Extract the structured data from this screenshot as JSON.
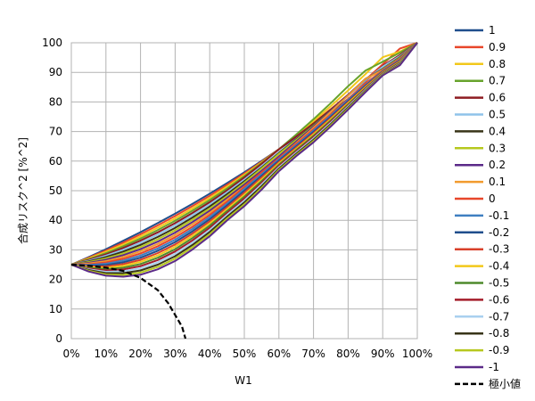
{
  "chart_data": {
    "type": "line",
    "title": "",
    "xlabel": "W1",
    "ylabel": "合成リスク^2 [%^2]",
    "xlim": [
      0,
      100
    ],
    "ylim": [
      0,
      100
    ],
    "x_ticks": [
      "0%",
      "10%",
      "20%",
      "30%",
      "40%",
      "50%",
      "60%",
      "70%",
      "80%",
      "90%",
      "100%"
    ],
    "y_ticks": [
      "0",
      "10",
      "20",
      "30",
      "40",
      "50",
      "60",
      "70",
      "80",
      "90",
      "100"
    ],
    "grid": true,
    "legend_position": "right",
    "x": [
      0,
      5,
      10,
      15,
      20,
      25,
      30,
      35,
      40,
      45,
      50,
      55,
      60,
      65,
      70,
      75,
      80,
      85,
      90,
      95,
      100
    ],
    "series": [
      {
        "name": "1",
        "color": "#1f4e8c",
        "values": [
          25,
          27.56,
          30.25,
          33.06,
          36,
          39.06,
          42.25,
          45.56,
          49,
          52.56,
          56.25,
          60.06,
          64,
          68.06,
          72.25,
          76.56,
          81,
          85.56,
          90.25,
          95.06,
          100
        ]
      },
      {
        "name": "0.9",
        "color": "#e8462a",
        "values": [
          25,
          27.31,
          29.8,
          32.45,
          35.28,
          38.28,
          41.44,
          44.78,
          48.28,
          51.96,
          55.8,
          59.81,
          64,
          68.36,
          72.88,
          77.58,
          82.44,
          87.48,
          92.68,
          98.06,
          100
        ]
      },
      {
        "name": "0.8",
        "color": "#f2c81a",
        "values": [
          25,
          27.07,
          29.35,
          31.85,
          34.56,
          37.5,
          40.64,
          44.01,
          47.56,
          51.35,
          55.35,
          59.56,
          64,
          68.66,
          73.52,
          78.59,
          83.88,
          89.39,
          95.12,
          97.06,
          100
        ]
      },
      {
        "name": "0.7",
        "color": "#67a32c",
        "values": [
          25,
          26.83,
          28.9,
          31.24,
          33.84,
          36.72,
          39.84,
          43.25,
          46.84,
          50.72,
          54.9,
          59.31,
          64,
          68.97,
          74.16,
          79.6,
          85.32,
          90.56,
          93.6,
          96.7,
          100
        ]
      },
      {
        "name": "0.6",
        "color": "#8e1c22",
        "values": [
          25,
          26.59,
          28.45,
          30.63,
          33.12,
          35.94,
          39.04,
          42.48,
          46.12,
          50.09,
          54.45,
          59.06,
          64,
          68.28,
          72.72,
          77.34,
          82.12,
          87.06,
          92.16,
          95.91,
          100
        ]
      },
      {
        "name": "0.5",
        "color": "#8fc3ea",
        "values": [
          25,
          26.34,
          28,
          30.03,
          32.4,
          35.16,
          38.25,
          41.71,
          45.4,
          49.46,
          53.75,
          58.31,
          63,
          67.5,
          72.2,
          77.06,
          82.1,
          87.3,
          91.9,
          95.5,
          100
        ]
      },
      {
        "name": "0.4",
        "color": "#383418",
        "values": [
          25,
          26.1,
          27.55,
          29.42,
          31.68,
          34.38,
          37.44,
          40.94,
          44.68,
          48.83,
          53.2,
          57.84,
          62.72,
          67.37,
          72.2,
          77.2,
          82.36,
          87.69,
          91.2,
          95.2,
          100
        ]
      },
      {
        "name": "0.3",
        "color": "#b6c81e",
        "values": [
          25,
          25.86,
          27.1,
          28.81,
          30.96,
          33.59,
          36.64,
          40.17,
          43.96,
          48.2,
          52.7,
          57.54,
          62.44,
          67.1,
          71.96,
          77.02,
          82.28,
          87.74,
          91.04,
          95.0,
          100
        ]
      },
      {
        "name": "0.2",
        "color": "#5b2a88",
        "values": [
          25,
          25.61,
          26.65,
          28.21,
          30.24,
          32.81,
          35.84,
          39.4,
          43.24,
          47.56,
          52.05,
          56.75,
          61.6,
          66.61,
          71.72,
          76.98,
          82.34,
          87.84,
          90.88,
          94.8,
          100
        ]
      },
      {
        "name": "0.1",
        "color": "#f29a2e",
        "values": [
          25,
          25.37,
          26.2,
          27.6,
          29.52,
          32.03,
          35.04,
          38.63,
          42.52,
          46.93,
          51.4,
          56.11,
          61,
          66.09,
          71.28,
          76.65,
          82.14,
          87.79,
          90.72,
          94.6,
          100
        ]
      },
      {
        "name": "0",
        "color": "#e8462a",
        "values": [
          25,
          25.13,
          25.75,
          27,
          28.8,
          31.25,
          34.25,
          37.81,
          41.8,
          46.25,
          51.25,
          56.25,
          61,
          65.81,
          70.75,
          75.81,
          81,
          86.31,
          90.56,
          94.4,
          100
        ]
      },
      {
        "name": "-0.1",
        "color": "#3f7fc1",
        "values": [
          25,
          24.88,
          25.3,
          26.39,
          28.08,
          30.47,
          33.44,
          37.04,
          41.08,
          45.62,
          50.6,
          55.57,
          60.56,
          65.37,
          70.32,
          75.41,
          80.64,
          85.71,
          90.4,
          94.2,
          100
        ]
      },
      {
        "name": "-0.2",
        "color": "#1f4e8c",
        "values": [
          25,
          24.64,
          24.85,
          25.79,
          27.36,
          29.69,
          32.64,
          36.27,
          40.36,
          44.99,
          49.95,
          55.0,
          60.12,
          64.96,
          69.88,
          75.0,
          80.28,
          85.44,
          90.24,
          94.0,
          100
        ]
      },
      {
        "name": "-0.3",
        "color": "#d9402a",
        "values": [
          25,
          24.4,
          24.4,
          25.18,
          26.64,
          28.91,
          31.84,
          35.5,
          39.64,
          44.36,
          49.3,
          54.42,
          59.68,
          64.55,
          69.44,
          74.59,
          79.92,
          85.17,
          90.08,
          93.8,
          100
        ]
      },
      {
        "name": "-0.4",
        "color": "#f2c81a",
        "values": [
          25,
          24.15,
          23.95,
          24.58,
          25.92,
          28.13,
          31.04,
          34.74,
          38.92,
          43.73,
          48.65,
          53.84,
          59.24,
          64.14,
          69.0,
          74.18,
          79.56,
          84.9,
          89.92,
          93.6,
          100
        ]
      },
      {
        "name": "-0.5",
        "color": "#4e8a2c",
        "values": [
          25,
          23.91,
          23.5,
          23.97,
          25.2,
          27.34,
          30.25,
          33.97,
          38.2,
          43.1,
          48.0,
          53.26,
          58.8,
          63.73,
          68.56,
          73.77,
          79.2,
          84.63,
          89.76,
          93.4,
          100
        ]
      },
      {
        "name": "-0.6",
        "color": "#a41c2a",
        "values": [
          25,
          23.67,
          23.05,
          23.36,
          24.48,
          26.56,
          29.45,
          33.2,
          37.48,
          42.47,
          47.35,
          52.68,
          58.36,
          63.32,
          68.12,
          73.36,
          78.84,
          84.36,
          89.6,
          93.2,
          100
        ]
      },
      {
        "name": "-0.7",
        "color": "#a9d0ef",
        "values": [
          25,
          23.42,
          22.6,
          22.76,
          23.76,
          25.78,
          28.65,
          32.43,
          36.76,
          41.84,
          46.7,
          52.1,
          57.92,
          62.91,
          67.68,
          72.95,
          78.48,
          84.09,
          89.44,
          93.0,
          100
        ]
      },
      {
        "name": "-0.8",
        "color": "#383418",
        "values": [
          25,
          23.18,
          22.15,
          22.15,
          23.04,
          25.0,
          27.85,
          31.66,
          36.04,
          41.21,
          46.05,
          51.52,
          57.48,
          62.5,
          67.24,
          72.54,
          78.12,
          83.82,
          89.28,
          92.8,
          100
        ]
      },
      {
        "name": "-0.9",
        "color": "#b6c81e",
        "values": [
          25,
          22.94,
          21.7,
          21.55,
          22.32,
          24.22,
          27.05,
          30.89,
          35.32,
          40.58,
          45.4,
          50.94,
          57.04,
          62.09,
          66.8,
          72.13,
          77.76,
          83.55,
          89.12,
          92.6,
          100
        ]
      },
      {
        "name": "-1",
        "color": "#5b2a88",
        "values": [
          25,
          22.69,
          21.25,
          20.94,
          21.6,
          23.44,
          26.25,
          30.13,
          34.6,
          39.95,
          44.75,
          50.36,
          56.6,
          61.68,
          66.36,
          71.72,
          77.4,
          83.28,
          88.96,
          92.4,
          100
        ]
      },
      {
        "name": "極小値",
        "color": "#000000",
        "dashed": true,
        "x": [
          0,
          5,
          10,
          15,
          20,
          25,
          28,
          30,
          32,
          33
        ],
        "values": [
          25,
          24.6,
          24.0,
          22.9,
          20.5,
          16.4,
          12.0,
          8.0,
          4.0,
          0
        ]
      }
    ]
  }
}
